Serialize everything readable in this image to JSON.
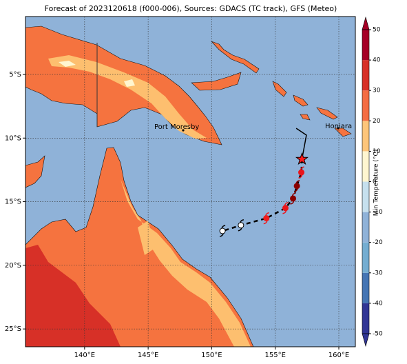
{
  "title": "Forecast of 2023120618 (f000-006), Sources: GDACS (TC track), GFS (Meteo)",
  "map": {
    "xlim": [
      135.35,
      161.3
    ],
    "ylim": [
      -26.4,
      -0.45
    ],
    "xticks": [
      {
        "value": 140,
        "label": "140°E"
      },
      {
        "value": 145,
        "label": "145°E"
      },
      {
        "value": 150,
        "label": "150°E"
      },
      {
        "value": 155,
        "label": "155°E"
      },
      {
        "value": 160,
        "label": "160°E"
      }
    ],
    "yticks": [
      {
        "value": -5,
        "label": "5°S"
      },
      {
        "value": -10,
        "label": "10°S"
      },
      {
        "value": -15,
        "label": "15°S"
      },
      {
        "value": -20,
        "label": "20°S"
      },
      {
        "value": -25,
        "label": "25°S"
      }
    ],
    "grid": true,
    "cities": [
      "Port Moresby",
      "Honiara"
    ],
    "past_track": {
      "lon": [
        157.1,
        157.45,
        156.65
      ],
      "lat": [
        -11.66,
        -9.77,
        -9.23
      ]
    },
    "forecast_track": {
      "lon": [
        157.1,
        157.05,
        156.7,
        156.4,
        155.8,
        154.3,
        152.3,
        150.85
      ],
      "lat": [
        -11.66,
        -12.7,
        -13.77,
        -14.75,
        -15.5,
        -16.3,
        -16.85,
        -17.3
      ],
      "colors": [
        "#ff1a1a",
        "#e8151b",
        "#8b0000",
        "#8b0000",
        "#e8151b",
        "#ee1c1c",
        "#ffffff",
        "#ffffff"
      ]
    }
  },
  "colorbar": {
    "label": "Min Temperature (°C)",
    "lim": [
      -50,
      50
    ],
    "ticks": [
      -50,
      -40,
      -30,
      -20,
      -10,
      0,
      10,
      20,
      30,
      40,
      50
    ],
    "colors": [
      "#313695",
      "#4575b4",
      "#74add1",
      "#8fb2d8",
      "#c6e0ee",
      "#fff6d0",
      "#fdc57a",
      "#f46d43",
      "#d73027",
      "#a50026"
    ]
  }
}
